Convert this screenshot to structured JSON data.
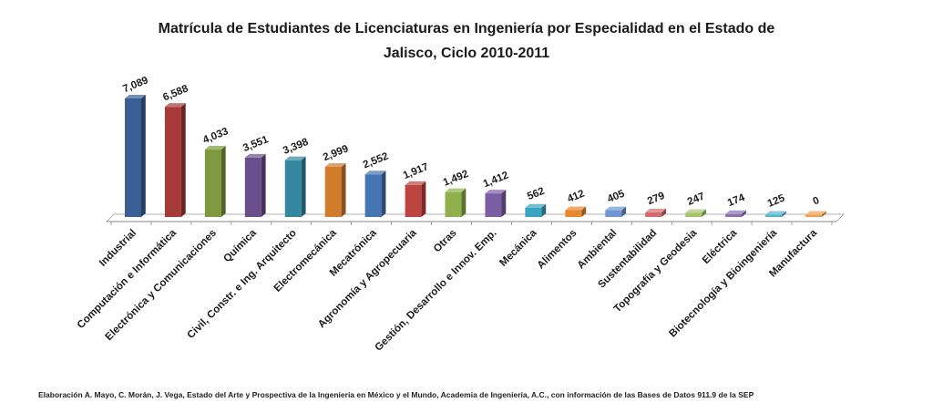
{
  "chart_data": {
    "type": "bar",
    "title_lines": [
      "Matrícula  de Estudiantes de Licenciaturas  en Ingeniería por Especialidad en el Estado de",
      "Jalisco, Ciclo 2010-2011"
    ],
    "categories": [
      "Industrial",
      "Computación e Informática",
      "Electrónica y Comunicaciones",
      "Química",
      "Civil, Constr. e Ing. Arquitecto",
      "Electromecánica",
      "Mecatrónica",
      "Agronomía y Agropecuaria",
      "Otras",
      "Gestión, Desarrollo e Innov. Emp.",
      "Mecánica",
      "Alimentos",
      "Ambiental",
      "Sustentabilidad",
      "Topografía y Geodesia",
      "Eléctrica",
      "Biotecnología y Bioingeniería",
      "Manufactura"
    ],
    "values": [
      7089,
      6588,
      4033,
      3551,
      3398,
      2999,
      2552,
      1917,
      1492,
      1412,
      562,
      412,
      405,
      279,
      247,
      174,
      125,
      0
    ],
    "value_labels": [
      "7,089",
      "6,588",
      "4,033",
      "3,551",
      "3,398",
      "2,999",
      "2,552",
      "1,917",
      "1,492",
      "1,412",
      "562",
      "412",
      "405",
      "279",
      "247",
      "174",
      "125",
      "0"
    ],
    "colors": [
      "#3a5f95",
      "#a53a37",
      "#7f9a3e",
      "#6a4e8c",
      "#33879f",
      "#d07c2c",
      "#4575b3",
      "#bd4440",
      "#8fb04b",
      "#7a5ea3",
      "#3aa3c2",
      "#e8892f",
      "#6f95d3",
      "#d26c6a",
      "#a8c46a",
      "#8a72b3",
      "#57b4cf",
      "#f0a050"
    ],
    "ylim": [
      0,
      7089
    ],
    "grid": false,
    "legend": "none",
    "chart_style": "3d-columns"
  },
  "source_note": "Elaboración A. Mayo, C. Morán, J. Vega, Estado del Arte y Prospectiva de la Ingeniería en México y el Mundo, Academia de Ingeniería, A.C., con información de las Bases de Datos  911.9  de la SEP"
}
